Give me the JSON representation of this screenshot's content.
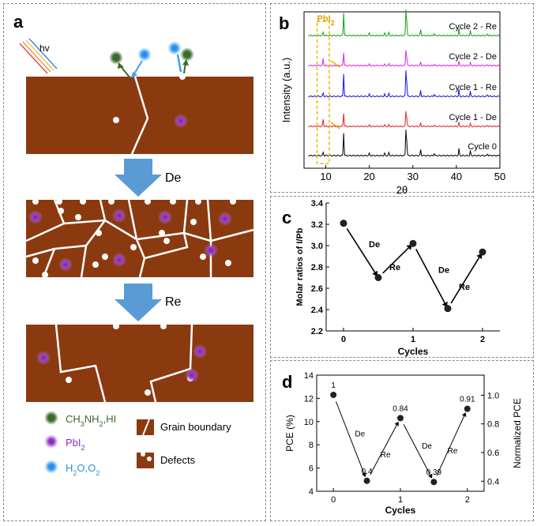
{
  "panel_a": {
    "letter": "a",
    "hv": "hv",
    "step1": "De",
    "step2": "Re",
    "legend": {
      "ch3": "CH3NH2,HI",
      "pbi2": "PbI2",
      "h2o": "H2O,O2",
      "grain": "Grain boundary",
      "defects": "Defects"
    },
    "colors": {
      "brown": "#8B3A0F",
      "arrow": "#5B9BD5",
      "green": "#3a6b2a",
      "purple": "#8a2fb3",
      "blue": "#2f8fe0"
    }
  },
  "chart_data": [
    {
      "type": "line",
      "panel": "b",
      "title": "",
      "xlabel": "2θ",
      "ylabel": "Intensity (a.u.)",
      "xlim": [
        5,
        50
      ],
      "xticks": [
        "10",
        "20",
        "30",
        "40",
        "50"
      ],
      "annotation": "PbI2",
      "series": [
        {
          "name": "Cycle 0",
          "color": "#000000"
        },
        {
          "name": "Cycle 1 - De",
          "color": "#e02020"
        },
        {
          "name": "Cycle 1 - Re",
          "color": "#1010e0"
        },
        {
          "name": "Cycle 2 - De",
          "color": "#e020e0"
        },
        {
          "name": "Cycle 2 - Re",
          "color": "#10a010"
        }
      ]
    },
    {
      "type": "scatter",
      "panel": "c",
      "xlabel": "Cycles",
      "ylabel": "Molar ratios of I/Pb",
      "xlim": [
        -0.25,
        2.25
      ],
      "ylim": [
        2.2,
        3.4
      ],
      "xticks": [
        "0",
        "1",
        "2"
      ],
      "yticks": [
        "2.2",
        "2.4",
        "2.6",
        "2.8",
        "3.0",
        "3.2",
        "3.4"
      ],
      "x": [
        0,
        0.5,
        1,
        1.5,
        2
      ],
      "y": [
        3.21,
        2.7,
        3.02,
        2.41,
        2.94
      ],
      "arrow_labels": [
        "De",
        "Re",
        "De",
        "Re"
      ]
    },
    {
      "type": "scatter",
      "panel": "d",
      "xlabel": "Cycles",
      "ylabel": "PCE (%)",
      "ylabel2": "Normalized PCE",
      "xlim": [
        -0.25,
        2.25
      ],
      "ylim": [
        4,
        14
      ],
      "ylim2": [
        0.33,
        1.14
      ],
      "xticks": [
        "0",
        "1",
        "2"
      ],
      "yticks": [
        "4",
        "6",
        "8",
        "10",
        "12",
        "14"
      ],
      "yticks2": [
        "0.4",
        "0.6",
        "0.8",
        "1.0"
      ],
      "x": [
        0,
        0.5,
        1,
        1.5,
        2
      ],
      "y": [
        12.3,
        4.9,
        10.3,
        4.8,
        11.1
      ],
      "point_labels": [
        "1",
        "0.4",
        "0.84",
        "0.39",
        "0.91"
      ],
      "arrow_labels": [
        "De",
        "Re",
        "De",
        "Re"
      ]
    }
  ],
  "panel_letters": {
    "b": "b",
    "c": "c",
    "d": "d"
  }
}
